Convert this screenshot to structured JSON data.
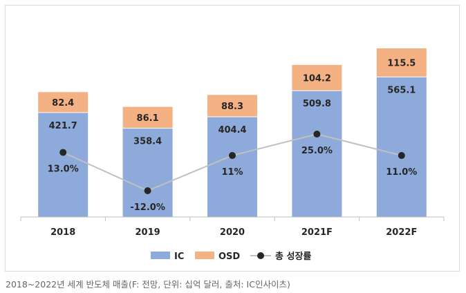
{
  "caption": "2018~2022년 세계 반도체 매출(F: 전망, 단위: 십억 달러, 출처: IC인사이츠)",
  "colors": {
    "ic": "#8eaadb",
    "osd": "#f4b183",
    "line": "#c0c0c0",
    "marker": "#262626",
    "text": "#262626"
  },
  "chart_data": {
    "type": "bar",
    "stacked": true,
    "categories": [
      "2018",
      "2019",
      "2020",
      "2021F",
      "2022F"
    ],
    "series": [
      {
        "name": "IC",
        "values": [
          421.7,
          358.4,
          404.4,
          509.8,
          565.1
        ],
        "labels": [
          "421.7",
          "358.4",
          "404.4",
          "509.8",
          "565.1"
        ]
      },
      {
        "name": "OSD",
        "values": [
          82.4,
          86.1,
          88.3,
          104.2,
          115.5
        ],
        "labels": [
          "82.4",
          "86.1",
          "88.3",
          "104.2",
          "115.5"
        ]
      }
    ],
    "line_series": {
      "name": "총 성장률",
      "type": "line",
      "values": [
        13.0,
        -12.0,
        11.0,
        25.0,
        11.0
      ],
      "labels": [
        "13.0%",
        "-12.0%",
        "11%",
        "25.0%",
        "11.0%"
      ]
    },
    "legend_position": "bottom",
    "grid": false
  }
}
